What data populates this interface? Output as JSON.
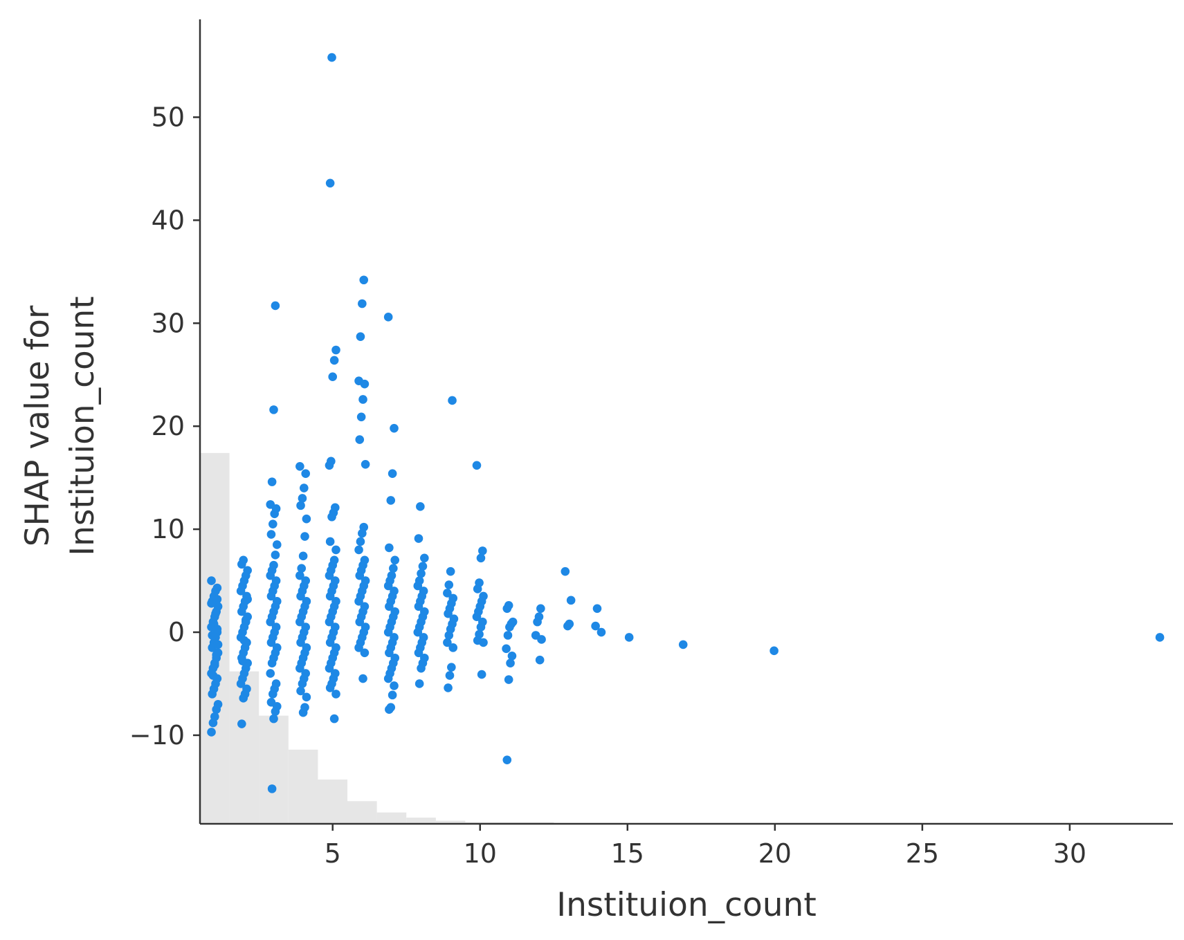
{
  "chart_data": {
    "type": "scatter",
    "xlabel": "Instituion_count",
    "ylabel": [
      "SHAP value for",
      "Instituion_count"
    ],
    "xlim": [
      0.5,
      33.5
    ],
    "ylim": [
      -18.6,
      59.5
    ],
    "xticks": [
      5,
      10,
      15,
      20,
      25,
      30
    ],
    "yticks": [
      -10,
      0,
      10,
      20,
      30,
      40,
      50
    ],
    "yticklabels": [
      "−10",
      "0",
      "10",
      "20",
      "30",
      "40",
      "50"
    ],
    "grid": false,
    "point_color": "#1e88e5",
    "histogram": {
      "color": "#e6e6e6",
      "bins": [
        {
          "x0": 0.5,
          "x1": 1.5,
          "y": 17.4
        },
        {
          "x0": 1.5,
          "x1": 2.5,
          "y": -3.8
        },
        {
          "x0": 2.5,
          "x1": 3.5,
          "y": -8.1
        },
        {
          "x0": 3.5,
          "x1": 4.5,
          "y": -11.4
        },
        {
          "x0": 4.5,
          "x1": 5.5,
          "y": -14.3
        },
        {
          "x0": 5.5,
          "x1": 6.5,
          "y": -16.4
        },
        {
          "x0": 6.5,
          "x1": 7.5,
          "y": -17.5
        },
        {
          "x0": 7.5,
          "x1": 8.5,
          "y": -18.0
        },
        {
          "x0": 8.5,
          "x1": 9.5,
          "y": -18.3
        },
        {
          "x0": 9.5,
          "x1": 12.5,
          "y": -18.45
        }
      ]
    },
    "clusters": [
      {
        "x": 1,
        "values": [
          5.0,
          4.3,
          4.0,
          3.5,
          3.0,
          2.5,
          2.0,
          1.5,
          1.0,
          0.5,
          0.0,
          -0.5,
          -1.0,
          -1.5,
          -2.0,
          -2.5,
          -3.0,
          -3.5,
          -4.0,
          -4.5,
          -5.0,
          -5.5,
          -6.0,
          -7.0,
          -7.5,
          -8.2,
          -8.8,
          -9.7,
          3.2,
          1.8,
          0.8,
          -0.3,
          -1.2,
          -2.2,
          -3.2,
          -4.2,
          2.8,
          0.3
        ]
      },
      {
        "x": 2,
        "values": [
          7.0,
          6.6,
          6.0,
          5.5,
          5.0,
          4.5,
          4.0,
          3.5,
          3.0,
          2.5,
          2.0,
          1.5,
          1.0,
          0.5,
          0.0,
          -0.5,
          -1.0,
          -1.5,
          -2.0,
          -2.5,
          -3.0,
          -3.5,
          -4.0,
          -4.5,
          -5.0,
          -5.5,
          -6.0,
          -6.4,
          -8.9,
          3.2,
          1.2,
          -0.8,
          -2.8
        ]
      },
      {
        "x": 3,
        "values": [
          31.7,
          21.6,
          14.6,
          12.4,
          12.0,
          11.5,
          10.5,
          9.5,
          8.5,
          7.5,
          6.5,
          6.0,
          5.5,
          5.0,
          4.5,
          4.0,
          3.5,
          3.0,
          2.5,
          2.0,
          1.5,
          1.0,
          0.5,
          0.0,
          -0.5,
          -1.0,
          -1.5,
          -2.0,
          -2.5,
          -3.0,
          -4.0,
          -5.0,
          -5.5,
          -6.0,
          -6.8,
          -7.2,
          -7.7,
          -8.4,
          -15.2
        ]
      },
      {
        "x": 4,
        "values": [
          16.1,
          15.4,
          14.0,
          13.0,
          12.3,
          11.0,
          9.3,
          7.4,
          6.2,
          5.5,
          5.0,
          4.5,
          4.0,
          3.5,
          3.0,
          2.5,
          2.0,
          1.5,
          1.0,
          0.5,
          0.0,
          -0.5,
          -1.0,
          -1.5,
          -2.0,
          -2.5,
          -3.0,
          -3.5,
          -4.0,
          -4.5,
          -5.0,
          -5.7,
          -6.3,
          -7.3,
          -7.8
        ]
      },
      {
        "x": 5,
        "values": [
          55.8,
          43.6,
          27.4,
          26.4,
          24.8,
          16.6,
          16.2,
          12.1,
          11.6,
          11.2,
          8.8,
          8.0,
          7.0,
          6.5,
          6.0,
          5.5,
          5.0,
          4.5,
          4.0,
          3.5,
          3.0,
          2.5,
          2.0,
          1.5,
          1.0,
          0.5,
          0.0,
          -0.5,
          -1.0,
          -1.5,
          -2.0,
          -2.5,
          -3.0,
          -3.5,
          -4.0,
          -4.5,
          -5.0,
          -5.4,
          -6.0,
          -8.4
        ]
      },
      {
        "x": 6,
        "values": [
          34.2,
          31.9,
          28.7,
          24.4,
          24.1,
          22.6,
          20.9,
          18.7,
          16.3,
          10.2,
          9.6,
          8.8,
          8.0,
          7.0,
          6.5,
          6.0,
          5.5,
          5.0,
          4.5,
          4.0,
          3.5,
          3.0,
          2.5,
          2.0,
          1.5,
          1.0,
          0.5,
          0.0,
          -0.5,
          -1.0,
          -1.5,
          -2.0,
          -4.5
        ]
      },
      {
        "x": 7,
        "values": [
          30.6,
          19.8,
          15.4,
          12.8,
          8.2,
          7.0,
          6.2,
          5.5,
          5.0,
          4.5,
          4.0,
          3.5,
          3.0,
          2.5,
          2.0,
          1.5,
          1.0,
          0.5,
          0.0,
          -0.5,
          -1.0,
          -1.5,
          -2.0,
          -2.5,
          -3.0,
          -3.5,
          -4.0,
          -4.5,
          -5.2,
          -6.1,
          -7.3,
          -7.5
        ]
      },
      {
        "x": 8,
        "values": [
          12.2,
          9.1,
          7.2,
          6.4,
          5.7,
          5.0,
          4.5,
          4.0,
          3.5,
          3.0,
          2.5,
          2.0,
          1.5,
          1.0,
          0.5,
          0.0,
          -0.5,
          -1.0,
          -1.5,
          -2.0,
          -2.5,
          -3.0,
          -3.5,
          -5.0
        ]
      },
      {
        "x": 9,
        "values": [
          22.5,
          5.9,
          4.6,
          3.8,
          3.3,
          2.8,
          2.3,
          1.8,
          1.3,
          0.8,
          0.3,
          -0.3,
          -1.0,
          -1.5,
          -3.4,
          -4.2,
          -5.4
        ]
      },
      {
        "x": 10,
        "values": [
          16.2,
          7.9,
          7.2,
          4.8,
          4.2,
          3.5,
          3.0,
          2.5,
          2.0,
          1.5,
          1.0,
          0.5,
          -0.2,
          -0.8,
          -1.0,
          -4.1
        ]
      },
      {
        "x": 11,
        "values": [
          2.6,
          2.3,
          1.0,
          0.8,
          0.5,
          -0.3,
          -1.6,
          -2.3,
          -3.0,
          -4.6,
          -12.4
        ]
      },
      {
        "x": 12,
        "values": [
          2.3,
          1.5,
          1.0,
          -0.3,
          -0.7,
          -2.7
        ]
      },
      {
        "x": 13,
        "values": [
          5.9,
          3.1,
          0.8,
          0.6
        ]
      },
      {
        "x": 14,
        "values": [
          2.3,
          0.6,
          0.0
        ]
      },
      {
        "x": 15,
        "values": [
          -0.5
        ]
      },
      {
        "x": 17,
        "values": [
          -1.2
        ]
      },
      {
        "x": 20,
        "values": [
          -1.8
        ]
      },
      {
        "x": 33,
        "values": [
          -0.5
        ]
      }
    ]
  }
}
